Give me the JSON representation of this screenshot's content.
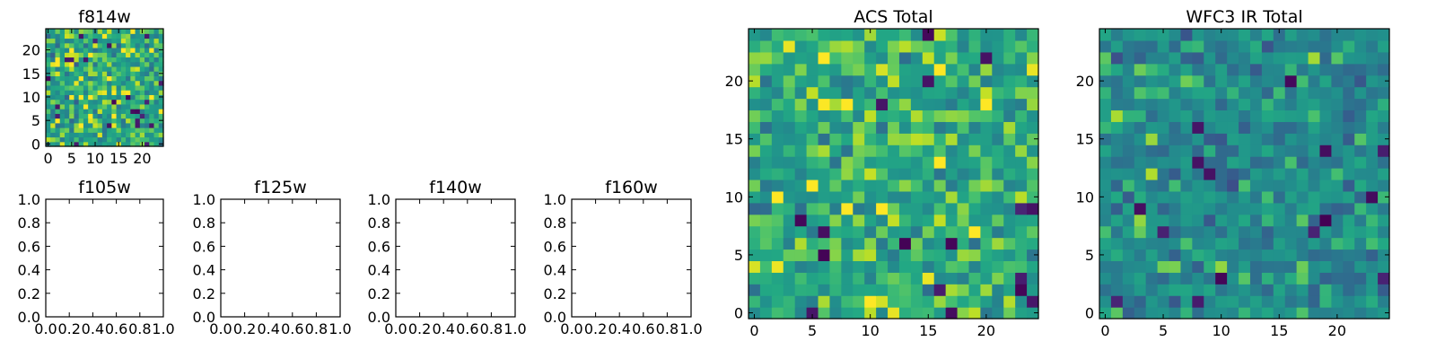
{
  "chart_data": [
    {
      "type": "heatmap",
      "title": "f814w",
      "xticks": [
        "0",
        "5",
        "10",
        "15",
        "20"
      ],
      "yticks": [
        "0",
        "5",
        "10",
        "15",
        "20"
      ],
      "xlim": [
        -0.5,
        24.5
      ],
      "ylim": [
        -0.5,
        24.5
      ],
      "grid_size": 25,
      "colormap": "viridis",
      "seed": 814,
      "mean": 0.74,
      "spread": 0.2
    },
    {
      "type": "scatter",
      "title": "f105w",
      "xticks": [
        "0.0",
        "0.2",
        "0.4",
        "0.6",
        "0.8",
        "1.0"
      ],
      "yticks": [
        "0.0",
        "0.2",
        "0.4",
        "0.6",
        "0.8",
        "1.0"
      ],
      "xlim": [
        0,
        1
      ],
      "ylim": [
        0,
        1
      ],
      "series": []
    },
    {
      "type": "scatter",
      "title": "f125w",
      "xticks": [
        "0.0",
        "0.2",
        "0.4",
        "0.6",
        "0.8",
        "1.0"
      ],
      "yticks": [
        "0.0",
        "0.2",
        "0.4",
        "0.6",
        "0.8",
        "1.0"
      ],
      "xlim": [
        0,
        1
      ],
      "ylim": [
        0,
        1
      ],
      "series": []
    },
    {
      "type": "scatter",
      "title": "f140w",
      "xticks": [
        "0.0",
        "0.2",
        "0.4",
        "0.6",
        "0.8",
        "1.0"
      ],
      "yticks": [
        "0.0",
        "0.2",
        "0.4",
        "0.6",
        "0.8",
        "1.0"
      ],
      "xlim": [
        0,
        1
      ],
      "ylim": [
        0,
        1
      ],
      "series": []
    },
    {
      "type": "scatter",
      "title": "f160w",
      "xticks": [
        "0.0",
        "0.2",
        "0.4",
        "0.6",
        "0.8",
        "1.0"
      ],
      "yticks": [
        "0.0",
        "0.2",
        "0.4",
        "0.6",
        "0.8",
        "1.0"
      ],
      "xlim": [
        0,
        1
      ],
      "ylim": [
        0,
        1
      ],
      "series": []
    },
    {
      "type": "heatmap",
      "title": "ACS Total",
      "xticks": [
        "0",
        "5",
        "10",
        "15",
        "20"
      ],
      "yticks": [
        "0",
        "5",
        "10",
        "15",
        "20"
      ],
      "xlim": [
        -0.5,
        24.5
      ],
      "ylim": [
        -0.5,
        24.5
      ],
      "grid_size": 25,
      "colormap": "viridis",
      "seed": 1001,
      "mean": 0.74,
      "spread": 0.18
    },
    {
      "type": "heatmap",
      "title": "WFC3 IR Total",
      "xticks": [
        "0",
        "5",
        "10",
        "15",
        "20"
      ],
      "yticks": [
        "0",
        "5",
        "10",
        "15",
        "20"
      ],
      "xlim": [
        -0.5,
        24.5
      ],
      "ylim": [
        -0.5,
        24.5
      ],
      "grid_size": 25,
      "colormap": "viridis",
      "seed": 3003,
      "mean": 0.6,
      "spread": 0.17
    }
  ]
}
